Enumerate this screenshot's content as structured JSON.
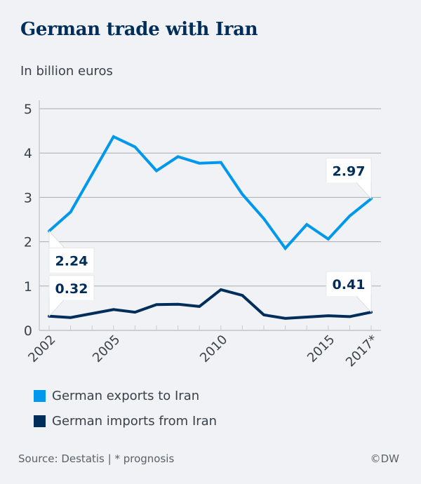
{
  "header": {
    "title": "German trade with Iran",
    "subtitle": "In billion euros"
  },
  "legend": [
    {
      "label": "German exports to Iran",
      "color": "#0098ec"
    },
    {
      "label": "German imports from Iran",
      "color": "#002d5a"
    }
  ],
  "footer": {
    "source": "Source: Destatis | * prognosis",
    "copyright": "©DW"
  },
  "chart_data": {
    "type": "line",
    "title": "German trade with Iran",
    "subtitle": "In billion euros",
    "xlabel": "",
    "ylabel": "In billion euros",
    "x": [
      2002,
      2003,
      2004,
      2005,
      2006,
      2007,
      2008,
      2009,
      2010,
      2011,
      2012,
      2013,
      2014,
      2015,
      2016,
      2017
    ],
    "x_tick_labels": [
      {
        "x": 2002,
        "label": "2002"
      },
      {
        "x": 2005,
        "label": "2005"
      },
      {
        "x": 2010,
        "label": "2010"
      },
      {
        "x": 2015,
        "label": "2015"
      },
      {
        "x": 2017,
        "label": "2017*"
      }
    ],
    "y_ticks": [
      0,
      1,
      2,
      3,
      4,
      5
    ],
    "ylim": [
      0,
      5
    ],
    "xlim": [
      2002,
      2017
    ],
    "grid": true,
    "legend_position": "bottom",
    "series": [
      {
        "name": "German exports to Iran",
        "color": "#0098ec",
        "values": [
          2.24,
          2.67,
          3.52,
          4.37,
          4.14,
          3.6,
          3.92,
          3.77,
          3.79,
          3.07,
          2.52,
          1.85,
          2.39,
          2.06,
          2.58,
          2.97
        ]
      },
      {
        "name": "German imports from Iran",
        "color": "#002d5a",
        "values": [
          0.32,
          0.29,
          0.38,
          0.47,
          0.41,
          0.58,
          0.59,
          0.54,
          0.92,
          0.79,
          0.35,
          0.27,
          0.3,
          0.33,
          0.31,
          0.41
        ]
      }
    ],
    "annotations": [
      {
        "series": 0,
        "x": 2002,
        "label": "2.24",
        "placement": "below-right"
      },
      {
        "series": 0,
        "x": 2017,
        "label": "2.97",
        "placement": "above-left"
      },
      {
        "series": 1,
        "x": 2002,
        "label": "0.32",
        "placement": "above-right"
      },
      {
        "series": 1,
        "x": 2017,
        "label": "0.41",
        "placement": "above-left"
      }
    ]
  }
}
